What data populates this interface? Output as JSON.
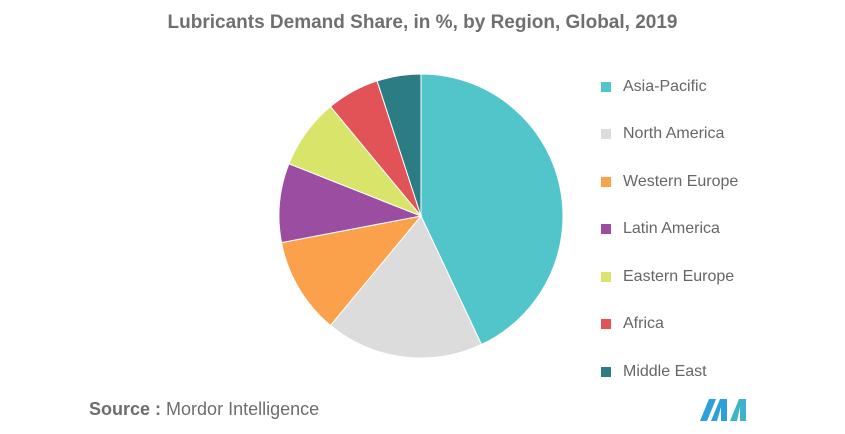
{
  "chart_data": {
    "type": "pie",
    "title": "Lubricants Demand Share, in %, by Region, Global, 2019",
    "categories": [
      "Asia-Pacific",
      "North America",
      "Western Europe",
      "Latin America",
      "Eastern Europe",
      "Africa",
      "Middle East"
    ],
    "values": [
      43,
      18,
      11,
      9,
      8,
      6,
      5
    ],
    "colors": [
      "#52c5cb",
      "#dcdcdc",
      "#fba04b",
      "#9b4ea1",
      "#d8e46a",
      "#e25358",
      "#2c7c84"
    ],
    "legend_position": "right",
    "start_angle": "top, clockwise"
  },
  "source": {
    "label": "Source :",
    "text": "Mordor Intelligence"
  },
  "logo": {
    "icon": "mordor-intelligence-logo-icon",
    "color": "#2d9fd9"
  }
}
